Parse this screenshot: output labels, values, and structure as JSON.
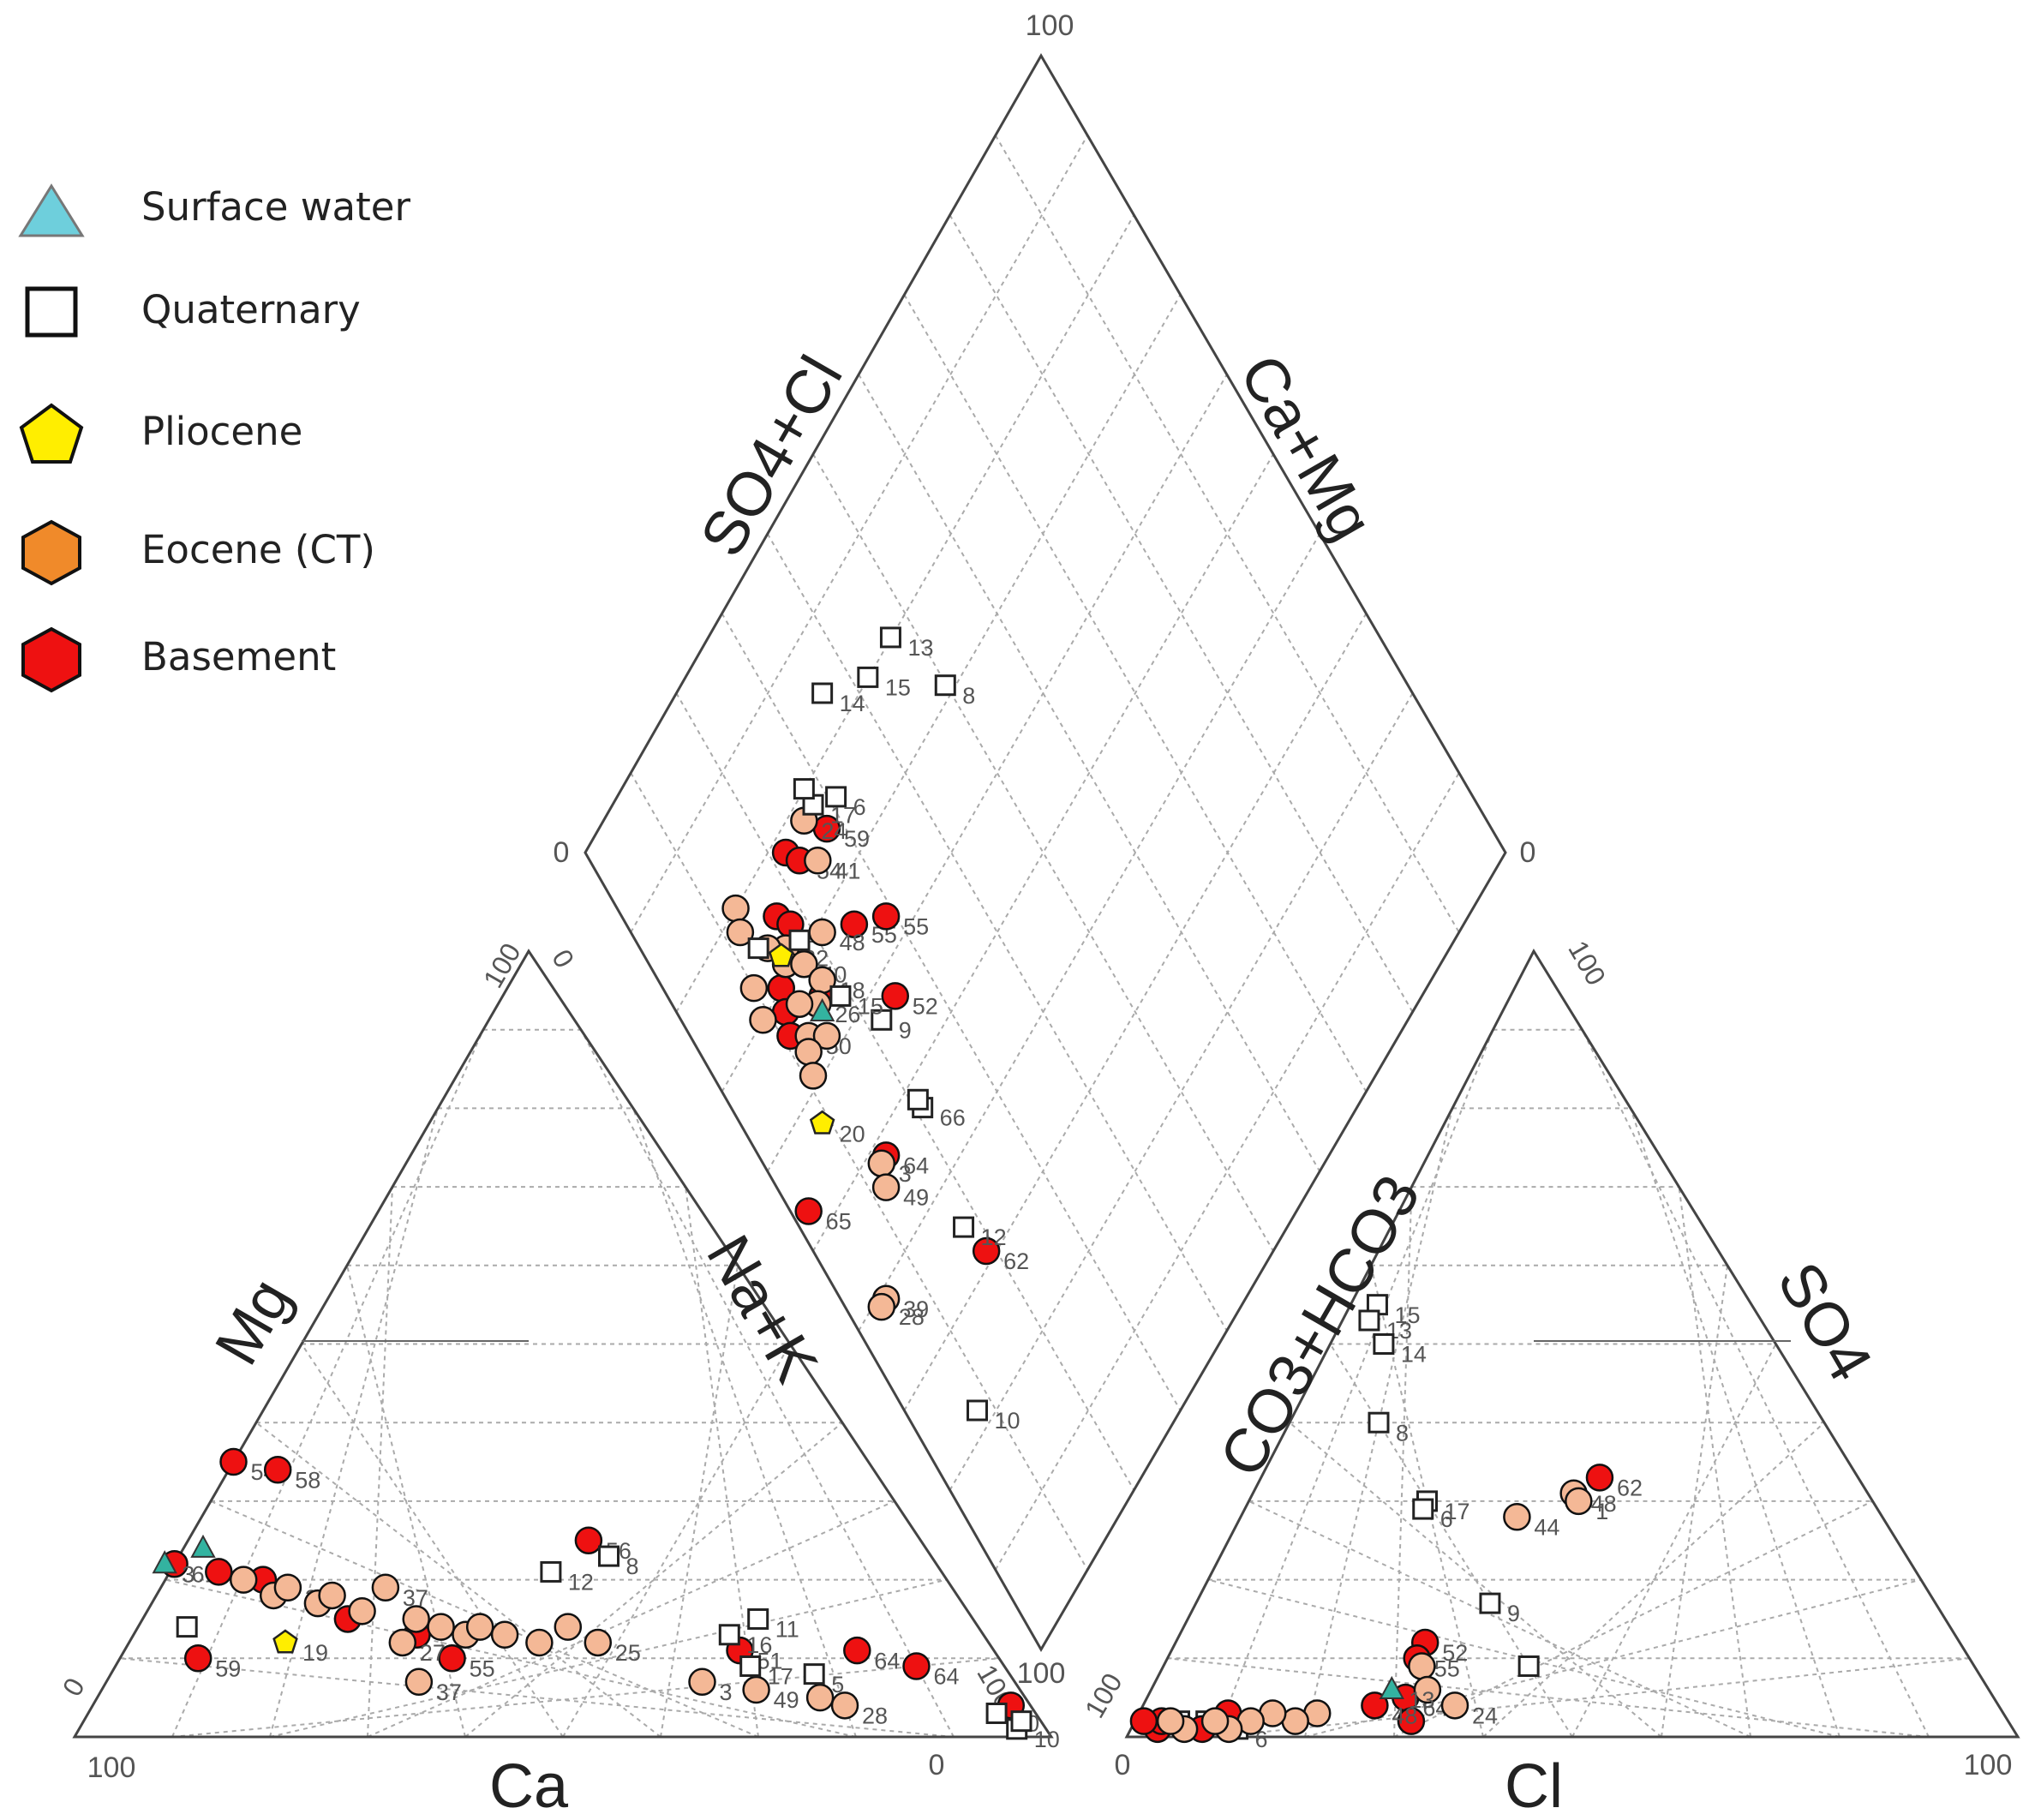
{
  "legend": {
    "items": [
      {
        "label": "Surface water",
        "symbol": "triangle",
        "fill": "#6ecfdc"
      },
      {
        "label": "Quaternary",
        "symbol": "square",
        "fill": "#ffffff"
      },
      {
        "label": "Pliocene",
        "symbol": "pentagon",
        "fill": "#ffee00"
      },
      {
        "label": "Eocene (CT)",
        "symbol": "hexagon",
        "fill": "#f08a2a"
      },
      {
        "label": "Basement",
        "symbol": "hexagon",
        "fill": "#ee1111"
      }
    ]
  },
  "chart_data": {
    "type": "scatter",
    "subtype": "piper-diagram",
    "title": "",
    "cation_triangle": {
      "axis_labels": {
        "left": "Mg",
        "right": "Na+K",
        "bottom": "Ca"
      },
      "tick_labels": {
        "apex": "100",
        "apex_zero": "0",
        "bottom_left": "100",
        "bottom_zero": "0",
        "left_zero": "0",
        "right_100": "100"
      }
    },
    "anion_triangle": {
      "axis_labels": {
        "left": "CO3+HCO3",
        "right": "SO4",
        "bottom": "Cl"
      },
      "tick_labels": {
        "apex": "100",
        "bottom_left": "0",
        "bottom_right": "100",
        "left_100": "100"
      }
    },
    "diamond": {
      "axis_labels": {
        "upper_left": "SO4+Cl",
        "upper_right": "Ca+Mg"
      },
      "tick_labels": {
        "top": "100",
        "left": "0",
        "right": "0",
        "bottom": "100"
      }
    },
    "marker_styles": {
      "surface": {
        "symbol": "triangle",
        "fill": "#33b3a0"
      },
      "quaternary": {
        "symbol": "square",
        "fill": "#ffffff"
      },
      "pliocene": {
        "symbol": "pentagon",
        "fill": "#ffee00"
      },
      "eocene": {
        "symbol": "circle",
        "fill": "#f4b896"
      },
      "basement": {
        "symbol": "circle",
        "fill": "#ee1111"
      }
    },
    "cation_points": [
      {
        "ca": 0.82,
        "mg": 0.1,
        "group": "basement",
        "label": "59"
      },
      {
        "ca": 0.65,
        "mg": 0.35,
        "group": "basement",
        "label": "54"
      },
      {
        "ca": 0.61,
        "mg": 0.34,
        "group": "basement",
        "label": "58"
      },
      {
        "ca": 0.34,
        "mg": 0.25,
        "group": "basement",
        "label": "56"
      },
      {
        "ca": 0.78,
        "mg": 0.22,
        "group": "basement",
        "label": "61"
      },
      {
        "ca": 0.74,
        "mg": 0.21,
        "group": "basement",
        "label": ""
      },
      {
        "ca": 0.7,
        "mg": 0.2,
        "group": "basement",
        "label": ""
      },
      {
        "ca": 0.64,
        "mg": 0.15,
        "group": "basement",
        "label": ""
      },
      {
        "ca": 0.58,
        "mg": 0.13,
        "group": "basement",
        "label": ""
      },
      {
        "ca": 0.56,
        "mg": 0.1,
        "group": "basement",
        "label": "55"
      },
      {
        "ca": 0.26,
        "mg": 0.11,
        "group": "basement",
        "label": "51"
      },
      {
        "ca": 0.14,
        "mg": 0.11,
        "group": "basement",
        "label": "64"
      },
      {
        "ca": 0.09,
        "mg": 0.09,
        "group": "basement",
        "label": "64"
      },
      {
        "ca": 0.02,
        "mg": 0.04,
        "group": "basement",
        "label": ""
      },
      {
        "ca": 0.79,
        "mg": 0.22,
        "group": "surface",
        "label": "3"
      },
      {
        "ca": 0.74,
        "mg": 0.24,
        "group": "surface",
        "label": ""
      },
      {
        "ca": 0.72,
        "mg": 0.12,
        "group": "pliocene",
        "label": "19"
      },
      {
        "ca": 0.72,
        "mg": 0.2,
        "group": "eocene",
        "label": ""
      },
      {
        "ca": 0.7,
        "mg": 0.18,
        "group": "eocene",
        "label": ""
      },
      {
        "ca": 0.68,
        "mg": 0.19,
        "group": "eocene",
        "label": "32"
      },
      {
        "ca": 0.66,
        "mg": 0.17,
        "group": "eocene",
        "label": ""
      },
      {
        "ca": 0.64,
        "mg": 0.18,
        "group": "eocene",
        "label": ""
      },
      {
        "ca": 0.62,
        "mg": 0.16,
        "group": "eocene",
        "label": ""
      },
      {
        "ca": 0.6,
        "mg": 0.12,
        "group": "eocene",
        "label": "27"
      },
      {
        "ca": 0.61,
        "mg": 0.07,
        "group": "eocene",
        "label": "37"
      },
      {
        "ca": 0.58,
        "mg": 0.19,
        "group": "eocene",
        "label": "37"
      },
      {
        "ca": 0.57,
        "mg": 0.15,
        "group": "eocene",
        "label": ""
      },
      {
        "ca": 0.55,
        "mg": 0.14,
        "group": "eocene",
        "label": ""
      },
      {
        "ca": 0.53,
        "mg": 0.13,
        "group": "eocene",
        "label": ""
      },
      {
        "ca": 0.51,
        "mg": 0.14,
        "group": "eocene",
        "label": ""
      },
      {
        "ca": 0.49,
        "mg": 0.13,
        "group": "eocene",
        "label": ""
      },
      {
        "ca": 0.46,
        "mg": 0.12,
        "group": "eocene",
        "label": ""
      },
      {
        "ca": 0.42,
        "mg": 0.14,
        "group": "eocene",
        "label": ""
      },
      {
        "ca": 0.4,
        "mg": 0.12,
        "group": "eocene",
        "label": "25"
      },
      {
        "ca": 0.32,
        "mg": 0.07,
        "group": "eocene",
        "label": "3"
      },
      {
        "ca": 0.27,
        "mg": 0.06,
        "group": "eocene",
        "label": "49"
      },
      {
        "ca": 0.21,
        "mg": 0.05,
        "group": "eocene",
        "label": ""
      },
      {
        "ca": 0.19,
        "mg": 0.04,
        "group": "eocene",
        "label": "28"
      },
      {
        "ca": 0.81,
        "mg": 0.14,
        "group": "quaternary",
        "label": ""
      },
      {
        "ca": 0.4,
        "mg": 0.21,
        "group": "quaternary",
        "label": "12"
      },
      {
        "ca": 0.33,
        "mg": 0.23,
        "group": "quaternary",
        "label": "8"
      },
      {
        "ca": 0.26,
        "mg": 0.13,
        "group": "quaternary",
        "label": "16"
      },
      {
        "ca": 0.22,
        "mg": 0.15,
        "group": "quaternary",
        "label": "11"
      },
      {
        "ca": 0.2,
        "mg": 0.08,
        "group": "quaternary",
        "label": "5"
      },
      {
        "ca": 0.26,
        "mg": 0.09,
        "group": "quaternary",
        "label": "17"
      },
      {
        "ca": 0.04,
        "mg": 0.03,
        "group": "quaternary",
        "label": "10"
      },
      {
        "ca": 0.03,
        "mg": 0.01,
        "group": "quaternary",
        "label": "10"
      },
      {
        "ca": 0.02,
        "mg": 0.02,
        "group": "quaternary",
        "label": ""
      }
    ],
    "anion_points": [
      {
        "cl": 0.03,
        "so4": 0.55,
        "group": "quaternary",
        "label": "15"
      },
      {
        "cl": 0.03,
        "so4": 0.53,
        "group": "quaternary",
        "label": "13"
      },
      {
        "cl": 0.06,
        "so4": 0.5,
        "group": "quaternary",
        "label": "14"
      },
      {
        "cl": 0.1,
        "so4": 0.4,
        "group": "quaternary",
        "label": "8"
      },
      {
        "cl": 0.2,
        "so4": 0.3,
        "group": "quaternary",
        "label": "17"
      },
      {
        "cl": 0.2,
        "so4": 0.29,
        "group": "quaternary",
        "label": "6"
      },
      {
        "cl": 0.33,
        "so4": 0.17,
        "group": "quaternary",
        "label": "9"
      },
      {
        "cl": 0.41,
        "so4": 0.09,
        "group": "quaternary",
        "label": ""
      },
      {
        "cl": 0.12,
        "so4": 0.01,
        "group": "quaternary",
        "label": "6"
      },
      {
        "cl": 0.08,
        "so4": 0.02,
        "group": "quaternary",
        "label": ""
      },
      {
        "cl": 0.05,
        "so4": 0.02,
        "group": "quaternary",
        "label": ""
      },
      {
        "cl": 0.38,
        "so4": 0.33,
        "group": "basement",
        "label": "62"
      },
      {
        "cl": 0.28,
        "so4": 0.12,
        "group": "basement",
        "label": "52"
      },
      {
        "cl": 0.28,
        "so4": 0.1,
        "group": "basement",
        "label": "55"
      },
      {
        "cl": 0.29,
        "so4": 0.05,
        "group": "basement",
        "label": "64"
      },
      {
        "cl": 0.31,
        "so4": 0.02,
        "group": "basement",
        "label": ""
      },
      {
        "cl": 0.26,
        "so4": 0.04,
        "group": "basement",
        "label": "48"
      },
      {
        "cl": 0.1,
        "so4": 0.03,
        "group": "basement",
        "label": ""
      },
      {
        "cl": 0.08,
        "so4": 0.01,
        "group": "basement",
        "label": ""
      },
      {
        "cl": 0.03,
        "so4": 0.01,
        "group": "basement",
        "label": ""
      },
      {
        "cl": 0.03,
        "so4": 0.02,
        "group": "basement",
        "label": ""
      },
      {
        "cl": 0.01,
        "so4": 0.02,
        "group": "basement",
        "label": ""
      },
      {
        "cl": 0.36,
        "so4": 0.31,
        "group": "eocene",
        "label": "48"
      },
      {
        "cl": 0.37,
        "so4": 0.3,
        "group": "eocene",
        "label": "1"
      },
      {
        "cl": 0.31,
        "so4": 0.28,
        "group": "eocene",
        "label": "44"
      },
      {
        "cl": 0.29,
        "so4": 0.09,
        "group": "eocene",
        "label": ""
      },
      {
        "cl": 0.31,
        "so4": 0.06,
        "group": "eocene",
        "label": ""
      },
      {
        "cl": 0.35,
        "so4": 0.04,
        "group": "eocene",
        "label": "24"
      },
      {
        "cl": 0.2,
        "so4": 0.03,
        "group": "eocene",
        "label": ""
      },
      {
        "cl": 0.18,
        "so4": 0.02,
        "group": "eocene",
        "label": ""
      },
      {
        "cl": 0.15,
        "so4": 0.03,
        "group": "eocene",
        "label": ""
      },
      {
        "cl": 0.13,
        "so4": 0.02,
        "group": "eocene",
        "label": ""
      },
      {
        "cl": 0.11,
        "so4": 0.01,
        "group": "eocene",
        "label": ""
      },
      {
        "cl": 0.09,
        "so4": 0.02,
        "group": "eocene",
        "label": ""
      },
      {
        "cl": 0.06,
        "so4": 0.01,
        "group": "eocene",
        "label": ""
      },
      {
        "cl": 0.04,
        "so4": 0.02,
        "group": "eocene",
        "label": ""
      },
      {
        "cl": 0.27,
        "so4": 0.06,
        "group": "surface",
        "label": "13"
      }
    ],
    "diamond_points": [
      {
        "so4cl": 0.28,
        "camg": 0.25,
        "group": "basement",
        "label": "59"
      },
      {
        "so4cl": 0.22,
        "camg": 0.22,
        "group": "basement",
        "label": ""
      },
      {
        "so4cl": 0.23,
        "camg": 0.24,
        "group": "basement",
        "label": "54"
      },
      {
        "so4cl": 0.17,
        "camg": 0.25,
        "group": "basement",
        "label": ""
      },
      {
        "so4cl": 0.18,
        "camg": 0.27,
        "group": "basement",
        "label": "13"
      },
      {
        "so4cl": 0.25,
        "camg": 0.34,
        "group": "basement",
        "label": "55"
      },
      {
        "so4cl": 0.29,
        "camg": 0.37,
        "group": "basement",
        "label": "55"
      },
      {
        "so4cl": 0.25,
        "camg": 0.43,
        "group": "basement",
        "label": "52"
      },
      {
        "so4cl": 0.13,
        "camg": 0.3,
        "group": "basement",
        "label": ""
      },
      {
        "so4cl": 0.12,
        "camg": 0.32,
        "group": "basement",
        "label": ""
      },
      {
        "so4cl": 0.11,
        "camg": 0.34,
        "group": "basement",
        "label": ""
      },
      {
        "so4cl": 0.17,
        "camg": 0.35,
        "group": "basement",
        "label": ""
      },
      {
        "so4cl": 0.14,
        "camg": 0.52,
        "group": "basement",
        "label": "64"
      },
      {
        "so4cl": 0.19,
        "camg": 0.69,
        "group": "basement",
        "label": "62"
      },
      {
        "so4cl": 0.02,
        "camg": 0.47,
        "group": "basement",
        "label": "65"
      },
      {
        "so4cl": 0.26,
        "camg": 0.22,
        "group": "eocene",
        "label": "24"
      },
      {
        "so4cl": 0.25,
        "camg": 0.26,
        "group": "eocene",
        "label": "41"
      },
      {
        "so4cl": 0.21,
        "camg": 0.31,
        "group": "eocene",
        "label": "48"
      },
      {
        "so4cl": 0.16,
        "camg": 0.28,
        "group": "eocene",
        "label": "22"
      },
      {
        "so4cl": 0.13,
        "camg": 0.2,
        "group": "eocene",
        "label": ""
      },
      {
        "so4cl": 0.12,
        "camg": 0.22,
        "group": "eocene",
        "label": ""
      },
      {
        "so4cl": 0.14,
        "camg": 0.26,
        "group": "eocene",
        "label": ""
      },
      {
        "so4cl": 0.15,
        "camg": 0.29,
        "group": "eocene",
        "label": ""
      },
      {
        "so4cl": 0.17,
        "camg": 0.31,
        "group": "eocene",
        "label": "40"
      },
      {
        "so4cl": 0.18,
        "camg": 0.34,
        "group": "eocene",
        "label": "18"
      },
      {
        "so4cl": 0.16,
        "camg": 0.35,
        "group": "eocene",
        "label": "26"
      },
      {
        "so4cl": 0.14,
        "camg": 0.33,
        "group": "eocene",
        "label": ""
      },
      {
        "so4cl": 0.13,
        "camg": 0.36,
        "group": "eocene",
        "label": "50"
      },
      {
        "so4cl": 0.15,
        "camg": 0.38,
        "group": "eocene",
        "label": ""
      },
      {
        "so4cl": 0.12,
        "camg": 0.37,
        "group": "eocene",
        "label": ""
      },
      {
        "so4cl": 0.11,
        "camg": 0.39,
        "group": "eocene",
        "label": ""
      },
      {
        "so4cl": 0.1,
        "camg": 0.27,
        "group": "eocene",
        "label": ""
      },
      {
        "so4cl": 0.09,
        "camg": 0.3,
        "group": "eocene",
        "label": ""
      },
      {
        "so4cl": 0.13,
        "camg": 0.52,
        "group": "eocene",
        "label": "3"
      },
      {
        "so4cl": 0.12,
        "camg": 0.54,
        "group": "eocene",
        "label": "49"
      },
      {
        "so4cl": 0.05,
        "camg": 0.61,
        "group": "eocene",
        "label": "39"
      },
      {
        "so4cl": 0.04,
        "camg": 0.61,
        "group": "eocene",
        "label": "28"
      },
      {
        "so4cl": 0.15,
        "camg": 0.28,
        "group": "pliocene",
        "label": ""
      },
      {
        "so4cl": 0.09,
        "camg": 0.43,
        "group": "pliocene",
        "label": "20"
      },
      {
        "so4cl": 0.16,
        "camg": 0.36,
        "group": "surface",
        "label": ""
      },
      {
        "so4cl": 0.5,
        "camg": 0.29,
        "group": "quaternary",
        "label": "8"
      },
      {
        "so4cl": 0.47,
        "camg": 0.2,
        "group": "quaternary",
        "label": "13"
      },
      {
        "so4cl": 0.42,
        "camg": 0.2,
        "group": "quaternary",
        "label": "15"
      },
      {
        "so4cl": 0.36,
        "camg": 0.16,
        "group": "quaternary",
        "label": "14"
      },
      {
        "so4cl": 0.31,
        "camg": 0.24,
        "group": "quaternary",
        "label": "6"
      },
      {
        "so4cl": 0.28,
        "camg": 0.22,
        "group": "quaternary",
        "label": "17"
      },
      {
        "so4cl": 0.28,
        "camg": 0.2,
        "group": "quaternary",
        "label": ""
      },
      {
        "so4cl": 0.22,
        "camg": 0.43,
        "group": "quaternary",
        "label": "9"
      },
      {
        "so4cl": 0.21,
        "camg": 0.53,
        "group": "quaternary",
        "label": "66"
      },
      {
        "so4cl": 0.21,
        "camg": 0.52,
        "group": "quaternary",
        "label": ""
      },
      {
        "so4cl": 0.18,
        "camg": 0.65,
        "group": "quaternary",
        "label": "12"
      },
      {
        "so4cl": 0.08,
        "camg": 0.78,
        "group": "quaternary",
        "label": "10"
      },
      {
        "so4cl": 0.18,
        "camg": 0.29,
        "group": "quaternary",
        "label": ""
      },
      {
        "so4cl": 0.13,
        "camg": 0.25,
        "group": "quaternary",
        "label": ""
      },
      {
        "so4cl": 0.19,
        "camg": 0.37,
        "group": "quaternary",
        "label": "15"
      }
    ]
  }
}
